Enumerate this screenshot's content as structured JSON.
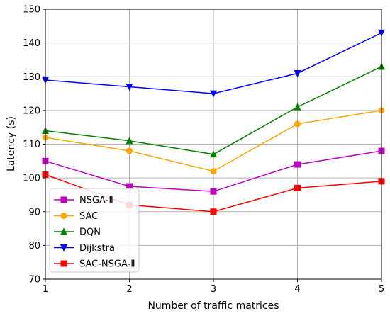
{
  "chart_data": {
    "type": "line",
    "title": "",
    "xlabel": "Number of traffic matrices",
    "ylabel": "Latency (s)",
    "x": [
      1,
      2,
      3,
      4,
      5
    ],
    "xlim": [
      1,
      5
    ],
    "ylim": [
      70,
      150
    ],
    "xticks": [
      "1",
      "2",
      "3",
      "4",
      "5"
    ],
    "yticks": [
      "70",
      "80",
      "90",
      "100",
      "110",
      "120",
      "130",
      "140",
      "150"
    ],
    "grid": true,
    "legend_position": "lower-left",
    "series": [
      {
        "name": "NSGA-Ⅱ",
        "color": "#c000c0",
        "marker": "square",
        "values": [
          105,
          97.5,
          96,
          104,
          108
        ]
      },
      {
        "name": "SAC",
        "color": "#ffa500",
        "marker": "circle",
        "values": [
          112,
          108,
          102,
          116,
          120
        ]
      },
      {
        "name": "DQN",
        "color": "#008000",
        "marker": "triangle-up",
        "values": [
          114,
          111,
          107,
          121,
          133
        ]
      },
      {
        "name": "Dijkstra",
        "color": "#0000ff",
        "marker": "triangle-down",
        "values": [
          129,
          127,
          125,
          131,
          143
        ]
      },
      {
        "name": "SAC-NSGA-Ⅱ",
        "color": "#ff0000",
        "marker": "square",
        "values": [
          101,
          92,
          90,
          97,
          99
        ]
      }
    ]
  }
}
